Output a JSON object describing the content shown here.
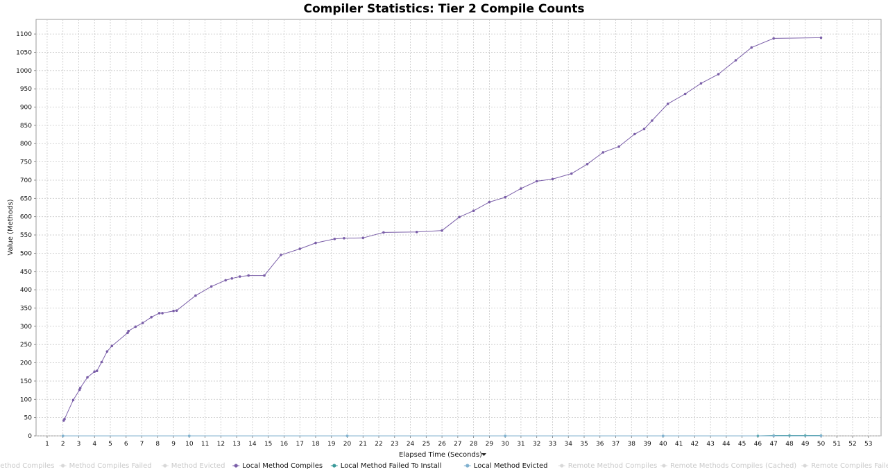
{
  "chart_data": {
    "type": "line",
    "title": "Compiler Statistics: Tier 2 Compile Counts",
    "xlabel": "Elapsed Time (Seconds)",
    "xlabel_dropdown_icon": "caret-down-icon",
    "ylabel": "Value (Methods)",
    "xlim": [
      0.3,
      53.8
    ],
    "ylim": [
      0,
      1140
    ],
    "x_ticks": [
      1,
      2,
      3,
      4,
      5,
      6,
      7,
      8,
      9,
      10,
      11,
      12,
      13,
      14,
      15,
      16,
      17,
      18,
      19,
      20,
      21,
      22,
      23,
      24,
      25,
      26,
      27,
      28,
      29,
      30,
      31,
      32,
      33,
      34,
      35,
      36,
      37,
      38,
      39,
      40,
      41,
      42,
      43,
      44,
      45,
      46,
      47,
      48,
      49,
      50,
      51,
      52,
      53
    ],
    "y_ticks": [
      0,
      50,
      100,
      150,
      200,
      250,
      300,
      350,
      400,
      450,
      500,
      550,
      600,
      650,
      700,
      750,
      800,
      850,
      900,
      950,
      1000,
      1050,
      1100
    ],
    "grid": true,
    "legend_position": "bottom",
    "legend": [
      {
        "name": "Method Compiles",
        "color": "#d8d8d8",
        "active": false
      },
      {
        "name": "Method Compiles Failed",
        "color": "#d8d8d8",
        "active": false
      },
      {
        "name": "Method Evicted",
        "color": "#d8d8d8",
        "active": false
      },
      {
        "name": "Local Method Compiles",
        "color": "#7a5ea8",
        "active": true
      },
      {
        "name": "Local Method Failed To Install",
        "color": "#3a9a9a",
        "active": true
      },
      {
        "name": "Local Method Evicted",
        "color": "#7fb0cf",
        "active": true
      },
      {
        "name": "Remote Method Compiles",
        "color": "#d8d8d8",
        "active": false
      },
      {
        "name": "Remote Methods Compiles (Cached)",
        "color": "#d8d8d8",
        "active": false
      },
      {
        "name": "Remote Compiles Failed",
        "color": "#d8d8d8",
        "active": false
      }
    ],
    "series": [
      {
        "name": "Local Method Compiles",
        "color": "#7a5ea8",
        "points": [
          [
            2.05,
            42
          ],
          [
            2.1,
            46
          ],
          [
            2.65,
            98
          ],
          [
            3.05,
            126
          ],
          [
            3.1,
            131
          ],
          [
            3.55,
            160
          ],
          [
            4.0,
            176
          ],
          [
            4.15,
            178
          ],
          [
            4.45,
            202
          ],
          [
            4.8,
            231
          ],
          [
            5.1,
            246
          ],
          [
            6.1,
            282
          ],
          [
            6.15,
            287
          ],
          [
            6.6,
            299
          ],
          [
            7.05,
            309
          ],
          [
            7.6,
            325
          ],
          [
            8.1,
            336
          ],
          [
            8.3,
            336
          ],
          [
            9.0,
            342
          ],
          [
            9.2,
            343
          ],
          [
            10.4,
            384
          ],
          [
            11.4,
            409
          ],
          [
            12.3,
            426
          ],
          [
            12.7,
            431
          ],
          [
            13.2,
            436
          ],
          [
            13.75,
            439
          ],
          [
            14.75,
            439
          ],
          [
            15.8,
            495
          ],
          [
            17.0,
            512
          ],
          [
            18.0,
            528
          ],
          [
            19.2,
            539
          ],
          [
            19.8,
            541
          ],
          [
            21.0,
            542
          ],
          [
            22.3,
            557
          ],
          [
            24.4,
            558
          ],
          [
            26.0,
            562
          ],
          [
            27.1,
            599
          ],
          [
            28.0,
            616
          ],
          [
            29.0,
            640
          ],
          [
            30.0,
            653
          ],
          [
            31.0,
            677
          ],
          [
            32.0,
            697
          ],
          [
            33.0,
            703
          ],
          [
            34.2,
            718
          ],
          [
            35.2,
            744
          ],
          [
            36.2,
            776
          ],
          [
            37.2,
            792
          ],
          [
            38.2,
            826
          ],
          [
            38.8,
            840
          ],
          [
            39.3,
            863
          ],
          [
            40.3,
            909
          ],
          [
            41.4,
            936
          ],
          [
            42.4,
            965
          ],
          [
            43.5,
            990
          ],
          [
            44.6,
            1028
          ],
          [
            45.6,
            1063
          ],
          [
            47.0,
            1088
          ],
          [
            50.0,
            1090
          ]
        ]
      },
      {
        "name": "Local Method Failed To Install",
        "color": "#3a9a9a",
        "points": [
          [
            2,
            0
          ],
          [
            10,
            0
          ],
          [
            20,
            0
          ],
          [
            30,
            0
          ],
          [
            40,
            0
          ],
          [
            46,
            0
          ],
          [
            47,
            1
          ],
          [
            48,
            1
          ],
          [
            49,
            1
          ],
          [
            50,
            1
          ]
        ]
      },
      {
        "name": "Local Method Evicted",
        "color": "#7fb0cf",
        "points": [
          [
            2,
            0
          ],
          [
            10,
            0
          ],
          [
            20,
            0
          ],
          [
            30,
            0
          ],
          [
            40,
            0
          ],
          [
            47,
            0
          ],
          [
            50,
            0
          ]
        ]
      }
    ]
  }
}
